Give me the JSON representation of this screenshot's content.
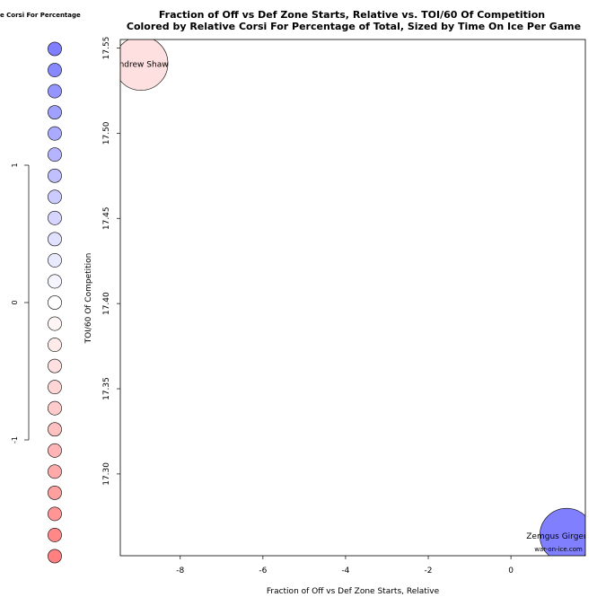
{
  "chart_data": {
    "type": "scatter",
    "title": "Fraction of Off vs Def Zone Starts, Relative vs. TOI/60 Of Competition",
    "subtitle": "Colored by Relative Corsi For Percentage of Total, Sized by Time On Ice Per Game",
    "xlabel": "Fraction of Off vs Def Zone Starts, Relative",
    "ylabel": "TOI/60 Of Competition",
    "xlim": [
      -9.45,
      1.8
    ],
    "ylim": [
      17.252,
      17.555
    ],
    "xticks": [
      "-8",
      "-6",
      "-4",
      "-2",
      "0"
    ],
    "xtick_values": [
      -8,
      -6,
      -4,
      -2,
      0
    ],
    "yticks": [
      "17.30",
      "17.35",
      "17.40",
      "17.45",
      "17.50",
      "17.55"
    ],
    "ytick_values": [
      17.3,
      17.35,
      17.4,
      17.45,
      17.5,
      17.55
    ],
    "grid": false,
    "points": [
      {
        "label": "Andrew Shaw",
        "x": -8.95,
        "y": 17.541,
        "color_value": -0.15,
        "color": "#ffe0e0"
      },
      {
        "label": "Zemgus Girgensons",
        "x": 1.35,
        "y": 17.264,
        "color_value": 1.0,
        "color": "#8080ff"
      }
    ],
    "legend": {
      "title": "Relative Corsi For Percentage of Total",
      "ticks": [
        "1",
        "0",
        "-1"
      ],
      "tick_values": [
        1,
        0,
        -1
      ],
      "swatches": [
        "#8080ff",
        "#8888ff",
        "#9595ff",
        "#a0a0ff",
        "#aaaaff",
        "#b5b5ff",
        "#c0c0ff",
        "#cbcbff",
        "#d5d5ff",
        "#e0e0ff",
        "#eaeaff",
        "#f5f5ff",
        "#ffffff",
        "#fff5f5",
        "#ffeaea",
        "#ffe0e0",
        "#ffd5d5",
        "#ffcbcb",
        "#ffc0c0",
        "#ffb5b5",
        "#ffaaaa",
        "#ffa0a0",
        "#ff9595",
        "#ff8888",
        "#ff8080"
      ]
    }
  },
  "watermark": "war-on-ice.com"
}
